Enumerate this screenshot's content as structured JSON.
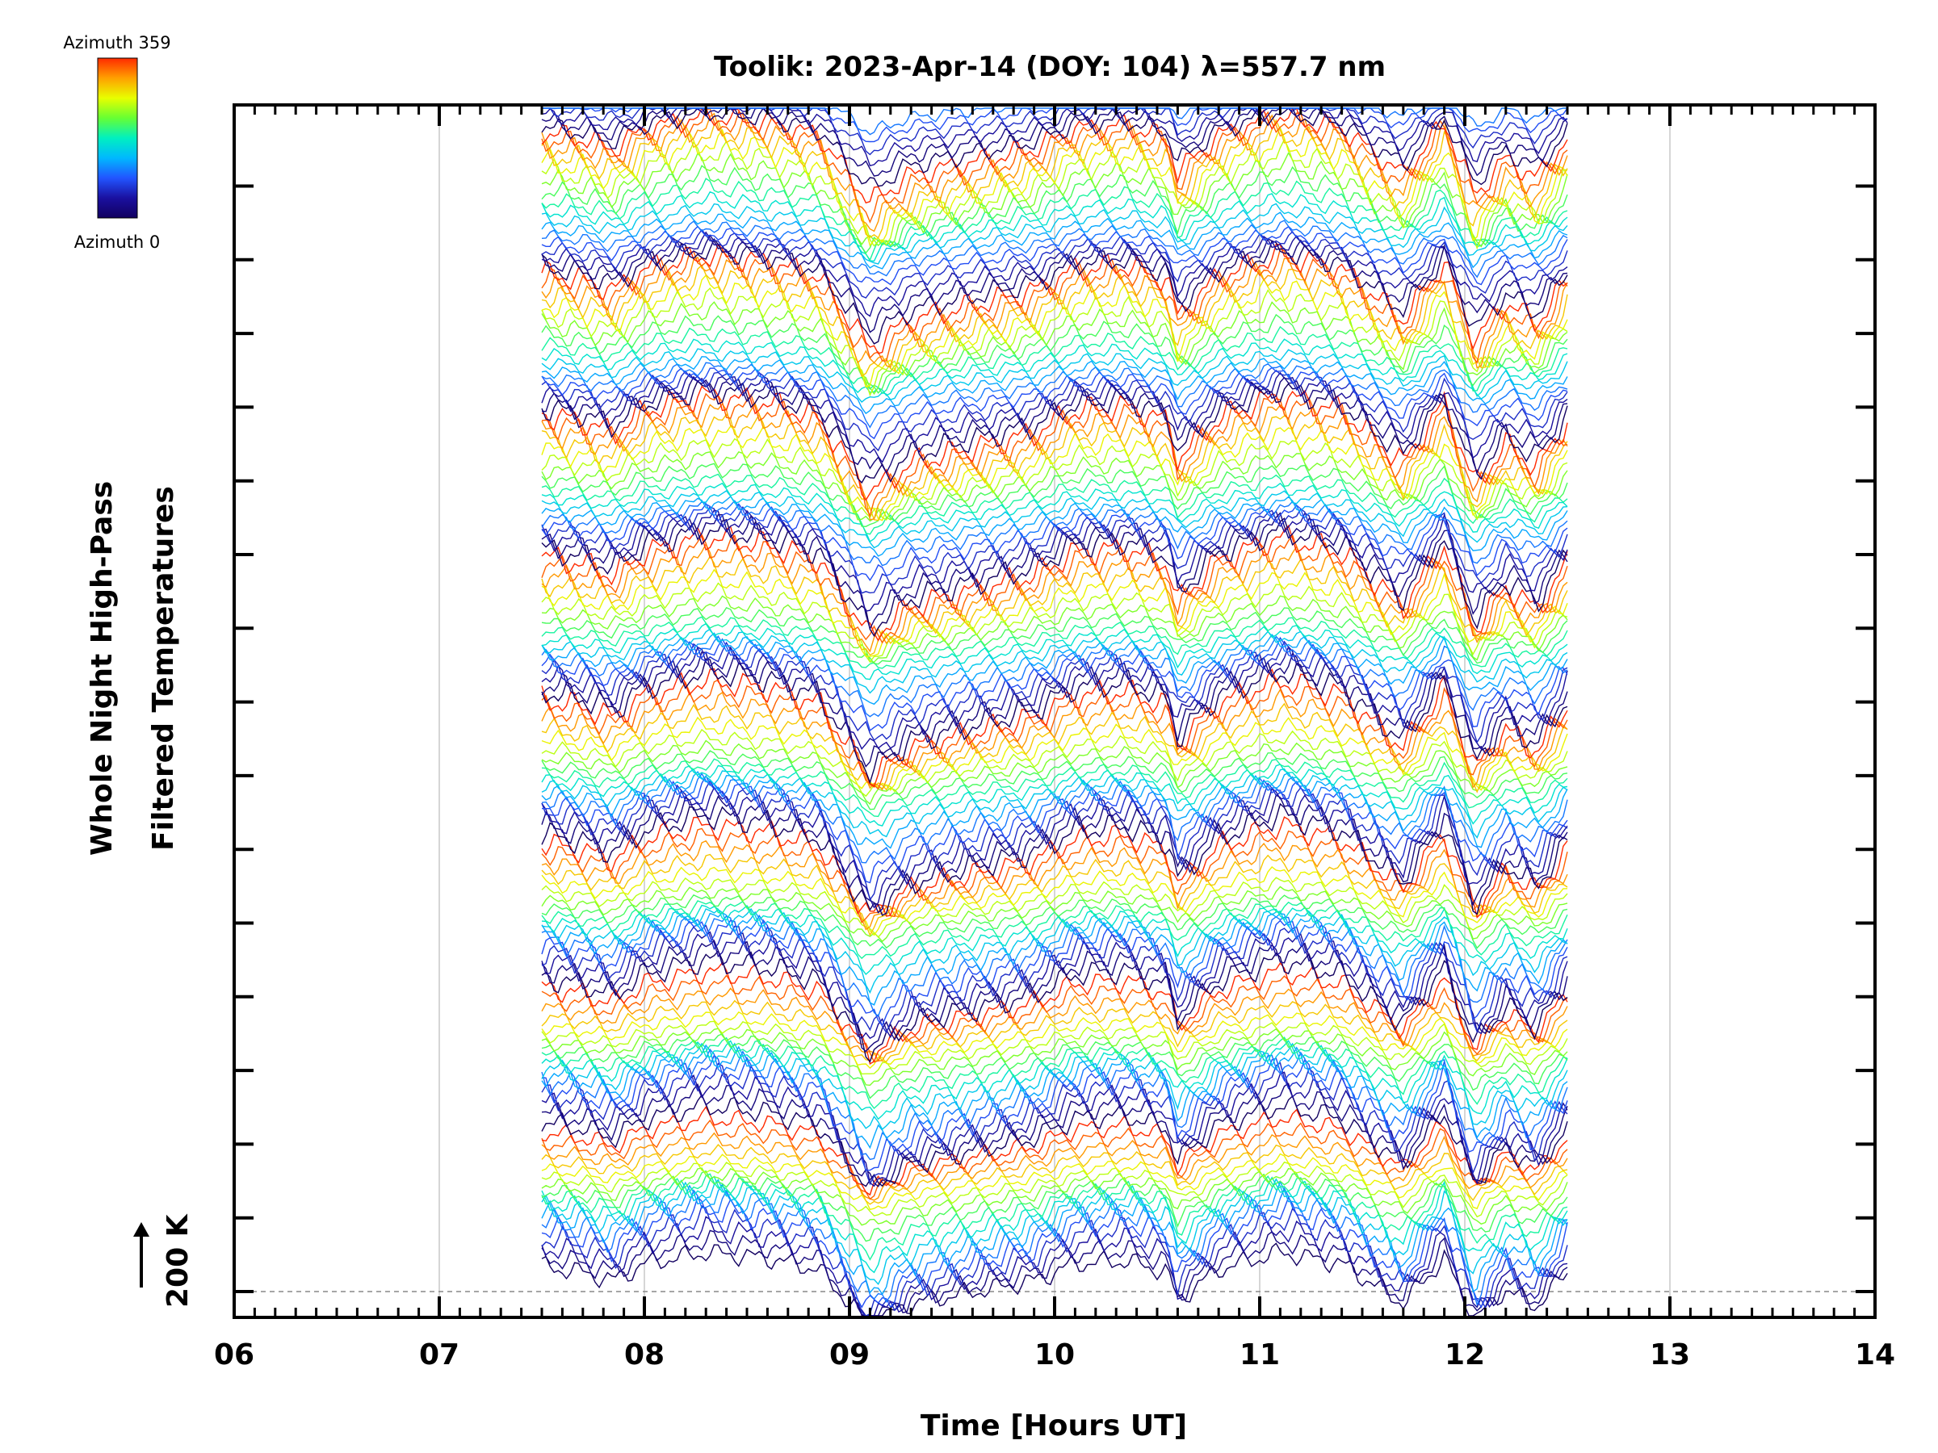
{
  "chart_data": {
    "type": "line",
    "title": "Toolik: 2023-Apr-14 (DOY: 104) λ=557.7 nm",
    "xlabel": "Time [Hours UT]",
    "ylabel_line1": "Whole Night High-Pass",
    "ylabel_line2": "Filtered Temperatures",
    "xlim": [
      6,
      14
    ],
    "x_tick_labels": [
      "06",
      "07",
      "08",
      "09",
      "10",
      "11",
      "12",
      "13",
      "14"
    ],
    "x_ticks": [
      6,
      7,
      8,
      9,
      10,
      11,
      12,
      13,
      14
    ],
    "scale_label": "200 K",
    "colorbar": {
      "top_label": "Azimuth 359",
      "bottom_label": "Azimuth 0",
      "colors": [
        "#ff2a00",
        "#ffa000",
        "#e8ff00",
        "#66ff33",
        "#00f0c0",
        "#00b8ff",
        "#2255ff",
        "#1a10a0",
        "#120060"
      ]
    },
    "data_time_range": [
      7.5,
      12.5
    ],
    "azimuth_range": [
      0,
      359
    ],
    "common_time_profile": {
      "t": [
        7.5,
        7.7,
        7.85,
        8.0,
        8.3,
        8.6,
        8.85,
        9.1,
        9.3,
        9.6,
        9.9,
        10.1,
        10.35,
        10.55,
        10.6,
        10.8,
        11.1,
        11.4,
        11.7,
        11.9,
        12.05,
        12.2,
        12.35,
        12.5
      ],
      "offset": [
        0.3,
        0.2,
        0.05,
        0.35,
        0.55,
        0.45,
        0.25,
        -0.75,
        -0.35,
        -0.15,
        0.05,
        0.35,
        0.4,
        0.2,
        -0.3,
        0.25,
        0.55,
        0.35,
        -0.35,
        0.45,
        -0.65,
        -0.1,
        -0.4,
        0.2
      ]
    }
  }
}
